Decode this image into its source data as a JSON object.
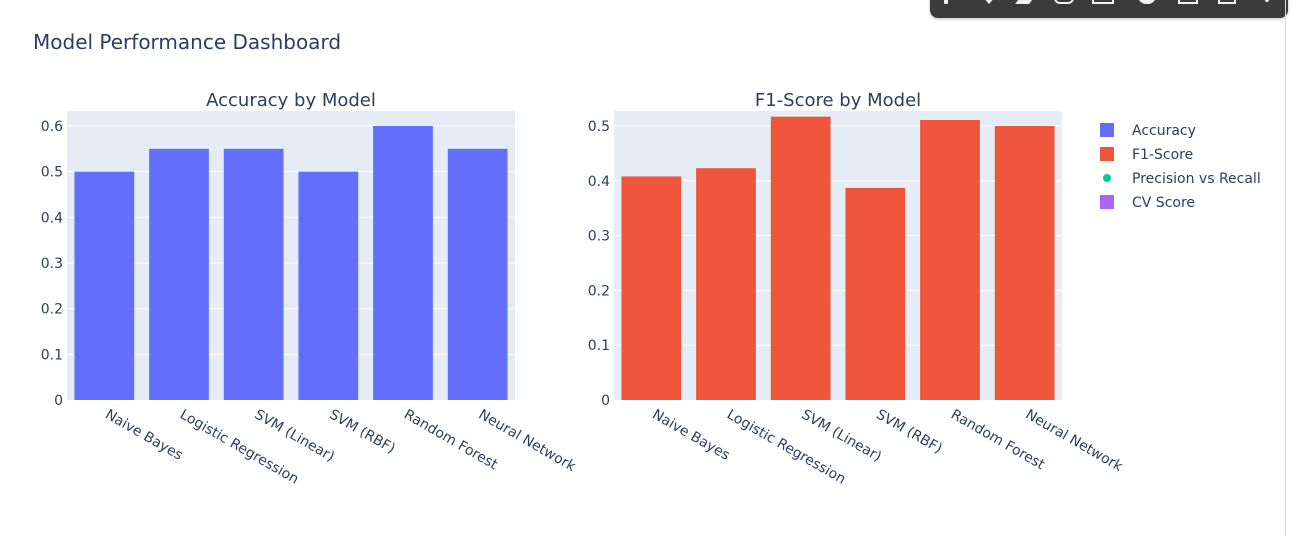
{
  "dashboard": {
    "title": "Model Performance Dashboard"
  },
  "colors": {
    "accuracy": "#636efa",
    "f1": "#ef553b",
    "precision_recall": "#00cc96",
    "cv": "#ab63fa",
    "plot_bg": "#e5ecf6",
    "text": "#2a3f5f",
    "modebar": "#3b3b3b"
  },
  "modebar": {
    "icons": [
      "camera-icon",
      "autoscale-icon",
      "pencil-icon",
      "link-icon",
      "comment-icon",
      "gear-icon",
      "export-icon",
      "trash-icon",
      "more-icon"
    ]
  },
  "legend": {
    "placement": "right",
    "items": [
      {
        "label": "Accuracy",
        "symbol": "square",
        "color_key": "accuracy"
      },
      {
        "label": "F1-Score",
        "symbol": "square",
        "color_key": "f1"
      },
      {
        "label": "Precision vs Recall",
        "symbol": "dot",
        "color_key": "precision_recall"
      },
      {
        "label": "CV Score",
        "symbol": "square",
        "color_key": "cv"
      }
    ]
  },
  "chart_data": [
    {
      "type": "bar",
      "title": "Accuracy by Model",
      "categories": [
        "Naive Bayes",
        "Logistic Regression",
        "SVM (Linear)",
        "SVM (RBF)",
        "Random Forest",
        "Neural Network"
      ],
      "series": [
        {
          "name": "Accuracy",
          "values": [
            0.5,
            0.55,
            0.55,
            0.5,
            0.6,
            0.55
          ]
        }
      ],
      "ylim": [
        0,
        0.6
      ],
      "yticks": [
        "0",
        "0.1",
        "0.2",
        "0.3",
        "0.4",
        "0.5",
        "0.6"
      ],
      "grid": true,
      "xlabel": "",
      "ylabel": ""
    },
    {
      "type": "bar",
      "title": "F1-Score by Model",
      "categories": [
        "Naive Bayes",
        "Logistic Regression",
        "SVM (Linear)",
        "SVM (RBF)",
        "Random Forest",
        "Neural Network"
      ],
      "series": [
        {
          "name": "F1-Score",
          "values": [
            0.408,
            0.423,
            0.517,
            0.387,
            0.511,
            0.5
          ]
        }
      ],
      "ylim": [
        0,
        0.5
      ],
      "yticks": [
        "0",
        "0.1",
        "0.2",
        "0.3",
        "0.4",
        "0.5"
      ],
      "grid": true,
      "xlabel": "",
      "ylabel": ""
    }
  ]
}
